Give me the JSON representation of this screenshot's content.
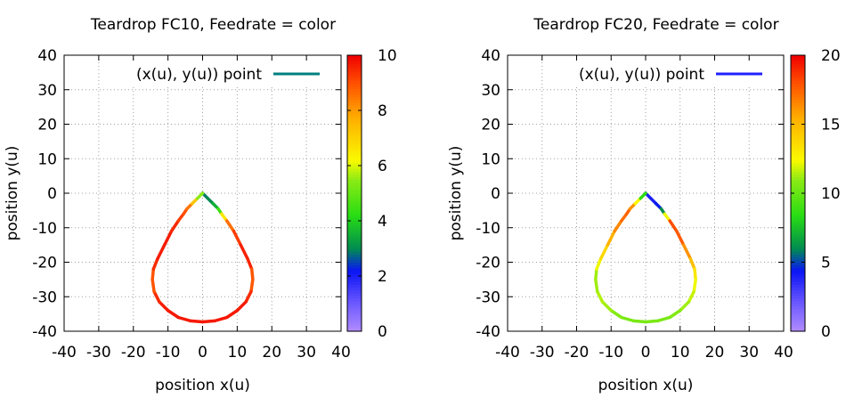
{
  "chart_data": [
    {
      "type": "line",
      "title": "Teardrop FC10, Feedrate = color",
      "xlabel": "position x(u)",
      "ylabel": "position y(u)",
      "xlim": [
        -40,
        40
      ],
      "ylim": [
        -40,
        40
      ],
      "xticks": [
        "-40",
        "-30",
        "-20",
        "-10",
        "0",
        "10",
        "20",
        "30",
        "40"
      ],
      "yticks": [
        "-40",
        "-30",
        "-20",
        "-10",
        "0",
        "10",
        "20",
        "30",
        "40"
      ],
      "grid": true,
      "legend": {
        "position": "top-right",
        "label": "(x(u), y(u)) point",
        "color": "#008080"
      },
      "colorbar": {
        "min": 0,
        "max": 10,
        "ticks": [
          "0",
          "2",
          "4",
          "6",
          "8",
          "10"
        ]
      },
      "series": [
        {
          "x": [
            0,
            1.5,
            3,
            4.5,
            5.5,
            7,
            9,
            11,
            13,
            14.2,
            14.5,
            14,
            12.5,
            10,
            7,
            3.5,
            0,
            -3.5,
            -7,
            -10,
            -12.5,
            -14,
            -14.5,
            -14.2,
            -13,
            -11,
            -9,
            -7,
            -5.5,
            -4.5,
            -3,
            -1.5,
            0
          ],
          "y": [
            0,
            -1.5,
            -3,
            -4.5,
            -6,
            -8,
            -11,
            -15,
            -19,
            -22,
            -25,
            -28.5,
            -31.5,
            -34,
            -36,
            -37,
            -37.3,
            -37,
            -36,
            -34,
            -31.5,
            -28.5,
            -25,
            -22,
            -19,
            -15,
            -11,
            -8,
            -6,
            -4.5,
            -3,
            -1.5,
            0
          ],
          "feed": [
            2.8,
            3.0,
            3.0,
            4.0,
            5.0,
            8.2,
            9.0,
            9.5,
            9.7,
            9.4,
            8.5,
            9.3,
            9.6,
            9.7,
            9.7,
            9.7,
            9.7,
            9.7,
            9.7,
            9.7,
            9.6,
            9.3,
            8.6,
            9.3,
            9.6,
            9.7,
            9.6,
            9.4,
            9.0,
            9.0,
            8.0,
            6.5,
            4.5
          ]
        }
      ]
    },
    {
      "type": "line",
      "title": "Teardrop FC20, Feedrate = color",
      "xlabel": "position x(u)",
      "ylabel": "position y(u)",
      "xlim": [
        -40,
        40
      ],
      "ylim": [
        -40,
        40
      ],
      "xticks": [
        "-40",
        "-30",
        "-20",
        "-10",
        "0",
        "10",
        "20",
        "30",
        "40"
      ],
      "yticks": [
        "-40",
        "-30",
        "-20",
        "-10",
        "0",
        "10",
        "20",
        "30",
        "40"
      ],
      "grid": true,
      "legend": {
        "position": "top-right",
        "label": "(x(u), y(u)) point",
        "color": "#2020ff"
      },
      "colorbar": {
        "min": 0,
        "max": 20,
        "ticks": [
          "0",
          "5",
          "10",
          "15",
          "20"
        ]
      },
      "series": [
        {
          "x": [
            0,
            1.5,
            3,
            4.5,
            5.5,
            7,
            9,
            11,
            13,
            14.2,
            14.5,
            14,
            12.5,
            10,
            7,
            3.5,
            0,
            -3.5,
            -7,
            -10,
            -12.5,
            -14,
            -14.5,
            -14.2,
            -13,
            -11,
            -9,
            -7,
            -5.5,
            -4.5,
            -3,
            -1.5,
            0
          ],
          "y": [
            0,
            -1.5,
            -3,
            -4.5,
            -6,
            -8,
            -11,
            -15,
            -19,
            -22,
            -25,
            -28.5,
            -31.5,
            -34,
            -36,
            -37,
            -37.3,
            -37,
            -36,
            -34,
            -31.5,
            -28.5,
            -25,
            -22,
            -19,
            -15,
            -11,
            -8,
            -6,
            -4.5,
            -3,
            -1.5,
            0
          ],
          "feed": [
            4.0,
            4.0,
            4.0,
            5.0,
            7.0,
            17.5,
            18.5,
            17.0,
            15.5,
            14.0,
            12.5,
            12.0,
            11.5,
            11.0,
            10.5,
            10.5,
            10.5,
            10.5,
            10.5,
            11.0,
            11.5,
            11.5,
            11.0,
            11.5,
            13.0,
            14.5,
            16.0,
            17.0,
            17.5,
            17.5,
            15.0,
            10.0,
            7.0
          ]
        }
      ]
    }
  ]
}
